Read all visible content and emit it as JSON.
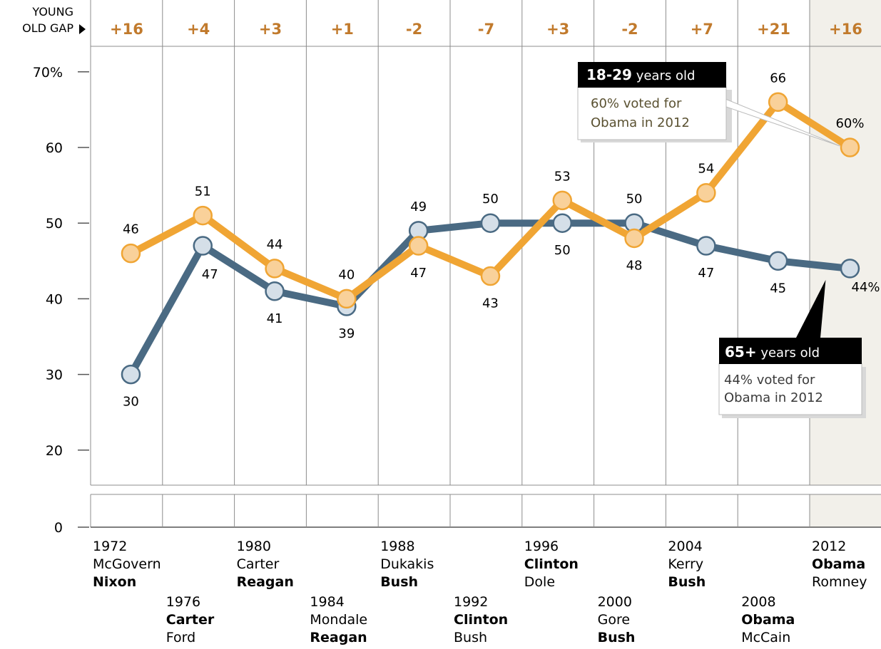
{
  "gap_header": {
    "line1": "YOUNG",
    "line2": "OLD GAP"
  },
  "colors": {
    "young": "#f0a534",
    "young_marker": "#f9d19a",
    "old": "#4a6a83",
    "old_marker": "#d5dfe8",
    "gap_text": "#c17a2c",
    "grid": "#8c8c8c",
    "shade": "#f2f0ea",
    "callout_head_bg": "#000000",
    "young_callout_text": "#5a5131",
    "old_callout_text": "#3a3a3a"
  },
  "elections": [
    {
      "year": "1972",
      "first": "McGovern",
      "second": "Nixon",
      "winner": "second",
      "gap": "+16"
    },
    {
      "year": "1976",
      "first": "Carter",
      "second": "Ford",
      "winner": "first",
      "gap": "+4"
    },
    {
      "year": "1980",
      "first": "Carter",
      "second": "Reagan",
      "winner": "second",
      "gap": "+3"
    },
    {
      "year": "1984",
      "first": "Mondale",
      "second": "Reagan",
      "winner": "second",
      "gap": "+1"
    },
    {
      "year": "1988",
      "first": "Dukakis",
      "second": "Bush",
      "winner": "second",
      "gap": "-2"
    },
    {
      "year": "1992",
      "first": "Clinton",
      "second": "Bush",
      "winner": "first",
      "gap": "-7"
    },
    {
      "year": "1996",
      "first": "Clinton",
      "second": "Dole",
      "winner": "first",
      "gap": "+3"
    },
    {
      "year": "2000",
      "first": "Gore",
      "second": "Bush",
      "winner": "second",
      "gap": "-2"
    },
    {
      "year": "2004",
      "first": "Kerry",
      "second": "Bush",
      "winner": "second",
      "gap": "+7"
    },
    {
      "year": "2008",
      "first": "Obama",
      "second": "McCain",
      "winner": "first",
      "gap": "+21"
    },
    {
      "year": "2012",
      "first": "Obama",
      "second": "Romney",
      "winner": "first",
      "gap": "+16"
    }
  ],
  "callouts": {
    "young": {
      "head_bold": "18-29",
      "head_rest": " years old",
      "body_line1": "60% voted for",
      "body_line2": "Obama in 2012"
    },
    "old": {
      "head_bold": "65+",
      "head_rest": " years old",
      "body_line1": "44% voted for",
      "body_line2": "Obama in 2012"
    }
  },
  "chart_data": {
    "type": "line",
    "x": [
      "1972",
      "1976",
      "1980",
      "1984",
      "1988",
      "1992",
      "1996",
      "2000",
      "2004",
      "2008",
      "2012"
    ],
    "series": [
      {
        "key": "young",
        "values": [
          46,
          51,
          44,
          40,
          47,
          43,
          53,
          48,
          54,
          66,
          60
        ],
        "labels": [
          "46",
          "51",
          "44",
          "40",
          "47",
          "43",
          "53",
          "48",
          "54",
          "66",
          "60%"
        ],
        "label_pos": [
          "above",
          "above",
          "above",
          "above",
          "below",
          "below",
          "above",
          "below",
          "above",
          "above",
          "above"
        ]
      },
      {
        "key": "old",
        "values": [
          30,
          47,
          41,
          39,
          49,
          50,
          50,
          50,
          47,
          45,
          44
        ],
        "labels": [
          "30",
          "47",
          "41",
          "39",
          "49",
          "50",
          "50",
          "50",
          "47",
          "45",
          "44%"
        ],
        "label_pos": [
          "below",
          "below-right",
          "below",
          "below",
          "above",
          "above",
          "below",
          "above",
          "below",
          "below",
          "right"
        ]
      }
    ],
    "yticks": [
      "70%",
      "60",
      "50",
      "40",
      "30",
      "20",
      "0"
    ],
    "ytick_values": [
      70,
      60,
      50,
      40,
      30,
      20,
      0
    ],
    "ylim": [
      15,
      72
    ],
    "axis_break": true,
    "grid": true,
    "highlight_column": "2012"
  }
}
